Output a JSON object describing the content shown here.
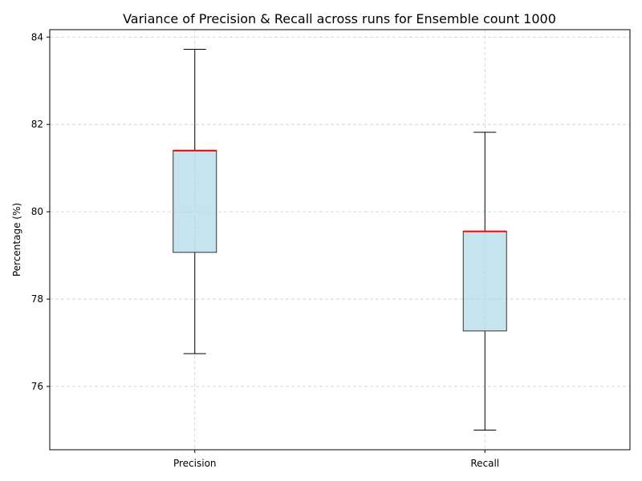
{
  "chart_data": {
    "type": "box",
    "title": "Variance of Precision & Recall across runs for Ensemble count 1000",
    "xlabel": "",
    "ylabel": "Percentage (%)",
    "categories": [
      "Precision",
      "Recall"
    ],
    "boxes": [
      {
        "name": "Precision",
        "min": 76.75,
        "q1": 79.07,
        "median": 81.4,
        "q3": 81.4,
        "max": 83.72
      },
      {
        "name": "Recall",
        "min": 75.0,
        "q1": 77.27,
        "median": 79.55,
        "q3": 79.55,
        "max": 81.82
      }
    ],
    "ylim": [
      74.55,
      84.17
    ],
    "yticks": [
      76,
      78,
      80,
      82,
      84
    ],
    "grid": true,
    "colors": {
      "box_fill": "#add8e6",
      "median": "#ff0000",
      "box_edge": "#333333"
    }
  }
}
